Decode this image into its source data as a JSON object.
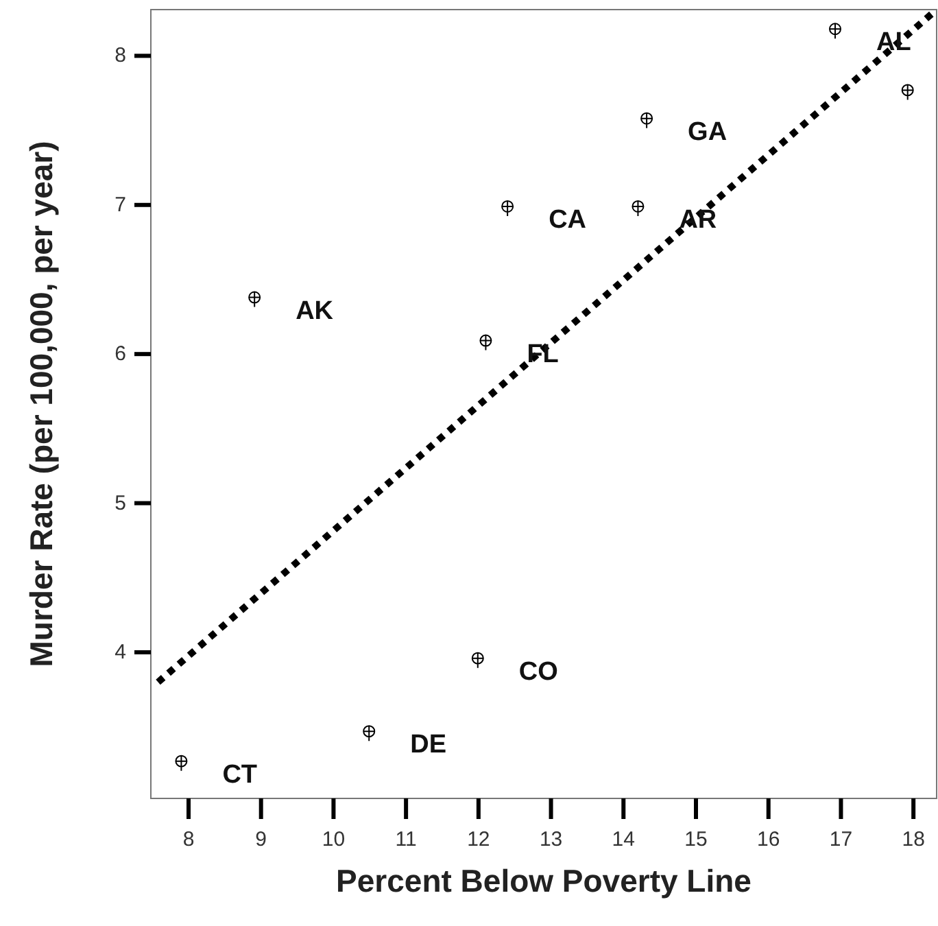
{
  "chart_data": {
    "type": "scatter",
    "xlabel": "Percent Below Poverty Line",
    "ylabel": "Murder Rate (per 100,000, per year)",
    "xlim": [
      7.48,
      18.32
    ],
    "ylim": [
      3.02,
      8.31
    ],
    "xticks": [
      8,
      9,
      10,
      11,
      12,
      13,
      14,
      15,
      16,
      17,
      18
    ],
    "yticks": [
      4,
      5,
      6,
      7,
      8
    ],
    "grid": false,
    "series": [
      {
        "color": "#000000",
        "marker": "cross",
        "x": [
          16.92,
          17.92,
          14.32,
          12.4,
          14.2,
          8.91,
          12.1,
          11.99,
          10.49,
          7.9
        ],
        "values": [
          8.18,
          7.77,
          7.58,
          6.99,
          6.99,
          6.38,
          6.09,
          3.96,
          3.47,
          3.27
        ]
      },
      {
        "type": "line",
        "color": "#000000",
        "line_style": "dotted",
        "x": [
          7.58,
          18.32
        ],
        "values": [
          3.8,
          8.31
        ]
      }
    ],
    "annotations": [
      {
        "text": "AL",
        "x": 16.92,
        "y": 8.18
      },
      {
        "text": "GA",
        "x": 14.32,
        "y": 7.58
      },
      {
        "text": "CA",
        "x": 12.4,
        "y": 6.99
      },
      {
        "text": "AR",
        "x": 14.2,
        "y": 6.99
      },
      {
        "text": "AK",
        "x": 8.91,
        "y": 6.38
      },
      {
        "text": "FL",
        "x": 12.1,
        "y": 6.09
      },
      {
        "text": "CO",
        "x": 11.99,
        "y": 3.96
      },
      {
        "text": "DE",
        "x": 10.49,
        "y": 3.47
      },
      {
        "text": "CT",
        "x": 7.9,
        "y": 3.27
      }
    ]
  }
}
